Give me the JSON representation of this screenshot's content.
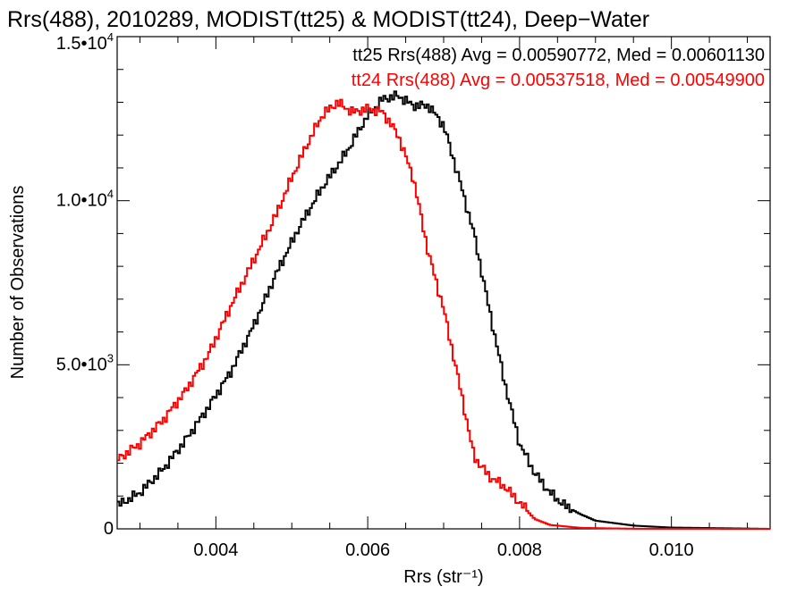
{
  "chart_data": {
    "type": "line",
    "title": "Rrs(488), 2010289, MODIST(tt25) & MODIST(tt24), Deep−Water",
    "xlabel": "Rrs (str⁻¹)",
    "ylabel": "Number of Observations",
    "xlim": [
      0.0027,
      0.0113
    ],
    "ylim": [
      0,
      15000
    ],
    "x_tick_values": [
      0.004,
      0.006,
      0.008,
      0.01
    ],
    "x_tick_labels": [
      "0.004",
      "0.006",
      "0.008",
      "0.010"
    ],
    "y_tick_values": [
      0,
      5000,
      10000,
      15000
    ],
    "y_tick_labels": [
      {
        "mant": "0",
        "exp": ""
      },
      {
        "mant": "5.0•10",
        "exp": "3"
      },
      {
        "mant": "1.0•10",
        "exp": "4"
      },
      {
        "mant": "1.5•10",
        "exp": "4"
      }
    ],
    "grid": false,
    "legend_position": "top-right",
    "series": [
      {
        "name": "tt25",
        "label": "tt25 Rrs(488) Avg = 0.00590772, Med = 0.00601130",
        "color": "#000000",
        "x": [
          0.0027,
          0.003,
          0.0033,
          0.0036,
          0.0039,
          0.0042,
          0.0045,
          0.0048,
          0.0051,
          0.0054,
          0.0057,
          0.006,
          0.0062,
          0.0064,
          0.0066,
          0.0068,
          0.007,
          0.0072,
          0.0074,
          0.0076,
          0.0078,
          0.008,
          0.0082,
          0.0084,
          0.0086,
          0.0088,
          0.009,
          0.0095,
          0.01,
          0.0113
        ],
        "y": [
          700,
          1100,
          1800,
          2700,
          3700,
          4800,
          6200,
          7800,
          9200,
          10400,
          11400,
          12600,
          13100,
          13200,
          12900,
          12900,
          12300,
          10700,
          9000,
          6700,
          4500,
          2600,
          1700,
          1100,
          700,
          450,
          250,
          100,
          40,
          0
        ]
      },
      {
        "name": "tt24",
        "label": "tt24 Rrs(488) Avg = 0.00537518, Med = 0.00549900",
        "color": "#ff0000",
        "x": [
          0.0027,
          0.003,
          0.0033,
          0.0036,
          0.0039,
          0.0042,
          0.0045,
          0.0048,
          0.005,
          0.0052,
          0.0054,
          0.0056,
          0.0058,
          0.006,
          0.0062,
          0.0064,
          0.0066,
          0.0068,
          0.007,
          0.0072,
          0.0074,
          0.0076,
          0.0078,
          0.008,
          0.0082,
          0.0084,
          0.0088,
          0.0095,
          0.0113
        ],
        "y": [
          2100,
          2600,
          3300,
          4200,
          5300,
          6800,
          8200,
          9600,
          10700,
          11700,
          12600,
          13000,
          12700,
          12800,
          12700,
          12000,
          10700,
          8400,
          6700,
          4500,
          2200,
          1600,
          1300,
          800,
          300,
          120,
          30,
          5,
          0
        ]
      }
    ]
  }
}
